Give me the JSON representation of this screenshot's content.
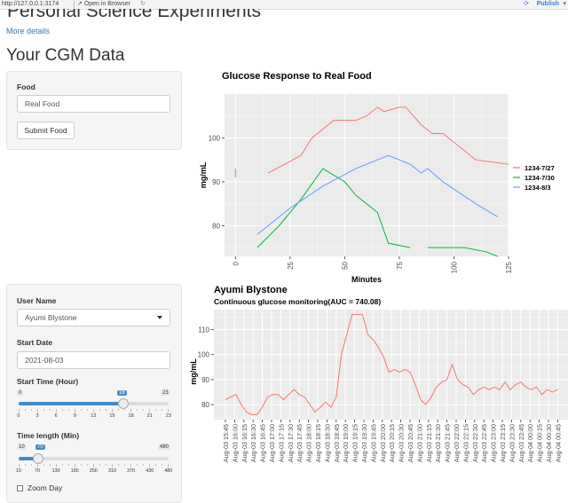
{
  "browser": {
    "url": "http://127.0.0.1:3174",
    "open_in_browser": "Open in Browser",
    "publish": "Publish"
  },
  "page": {
    "app_title": "Personal Science Experiments",
    "more_details": "More details",
    "section_title": "Your CGM Data"
  },
  "food_panel": {
    "food_label": "Food",
    "food_value": "Real Food",
    "submit_label": "Submit Food"
  },
  "user_panel": {
    "user_label": "User Name",
    "user_value": "Ayumi Blystone",
    "start_date_label": "Start Date",
    "start_date_value": "2021-08-03",
    "start_time_label": "Start Time (Hour)",
    "start_time": {
      "min": "0",
      "max": "23",
      "value": "16",
      "value_num": 16,
      "ticks": [
        "0",
        "3",
        "6",
        "9",
        "12",
        "15",
        "18",
        "21",
        "23"
      ]
    },
    "time_length_label": "Time length (Min)",
    "time_length": {
      "min": "10",
      "max": "480",
      "value": "70",
      "value_num": 70,
      "ticks": [
        "10",
        "70",
        "130",
        "190",
        "250",
        "310",
        "370",
        "430",
        "480"
      ]
    },
    "zoom_label": "Zoom Day"
  },
  "colors": {
    "accent": "#428bca",
    "series_1": "#f8766d",
    "series_2": "#00ba38",
    "series_3": "#619cff",
    "panel_bg": "#ebebeb"
  },
  "chart_data": [
    {
      "type": "line",
      "title": "Glucose Response to Real Food",
      "xlabel": "Minutes",
      "ylabel": "mg/mL",
      "xlim": [
        -5,
        125
      ],
      "ylim": [
        73,
        110
      ],
      "x_ticks": [
        "0",
        "25",
        "50",
        "75",
        "100",
        "125"
      ],
      "y_ticks": [
        "80",
        "90",
        "100"
      ],
      "legend_position": "right",
      "grid": true,
      "series": [
        {
          "name": "1234-7/27",
          "segments": [
            [
              [
                0,
                93
              ],
              [
                0,
                91
              ]
            ],
            [
              [
                15,
                92
              ],
              [
                30,
                96
              ],
              [
                35,
                100
              ],
              [
                40,
                102
              ],
              [
                45,
                104
              ],
              [
                50,
                104
              ],
              [
                55,
                104
              ],
              [
                60,
                105
              ],
              [
                65,
                107
              ],
              [
                68,
                106
              ],
              [
                75,
                107
              ],
              [
                78,
                107
              ],
              [
                85,
                103
              ],
              [
                90,
                101
              ],
              [
                95,
                101
              ],
              [
                105,
                97
              ],
              [
                110,
                95
              ],
              [
                125,
                94
              ]
            ]
          ]
        },
        {
          "name": "1234-7/30",
          "segments": [
            [
              [
                10,
                75
              ],
              [
                20,
                80
              ],
              [
                30,
                86
              ],
              [
                40,
                93
              ],
              [
                50,
                90
              ],
              [
                55,
                87
              ],
              [
                65,
                83
              ],
              [
                70,
                76
              ],
              [
                80,
                75
              ]
            ],
            [
              [
                88,
                75
              ],
              [
                105,
                75
              ],
              [
                115,
                74
              ],
              [
                120,
                73
              ]
            ]
          ]
        },
        {
          "name": "1234-8/3",
          "segments": [
            [
              [
                10,
                78
              ],
              [
                25,
                84
              ],
              [
                40,
                89
              ],
              [
                55,
                93
              ],
              [
                65,
                95
              ],
              [
                70,
                96
              ],
              [
                80,
                94
              ],
              [
                85,
                92
              ],
              [
                88,
                93
              ],
              [
                95,
                90
              ],
              [
                110,
                85
              ],
              [
                120,
                82
              ]
            ]
          ]
        }
      ]
    },
    {
      "type": "line",
      "title": "Ayumi Blystone",
      "subtitle": "Continuous glucose monitoring(AUC = 740.08)",
      "xlabel": "",
      "ylabel": "mg/mL",
      "ylim": [
        74,
        118
      ],
      "y_ticks": [
        "80",
        "90",
        "100",
        "110"
      ],
      "grid": true,
      "x_tick_labels": [
        "Aug-03 15:45",
        "Aug-03 16:00",
        "Aug-03 16:15",
        "Aug-03 16:30",
        "Aug-03 16:45",
        "Aug-03 17:00",
        "Aug-03 17:15",
        "Aug-03 17:30",
        "Aug-03 17:45",
        "Aug-03 18:00",
        "Aug-03 18:15",
        "Aug-03 18:30",
        "Aug-03 18:45",
        "Aug-03 19:00",
        "Aug-03 19:15",
        "Aug-03 19:30",
        "Aug-03 19:45",
        "Aug-03 20:00",
        "Aug-03 20:15",
        "Aug-03 20:30",
        "Aug-03 20:45",
        "Aug-03 21:00",
        "Aug-03 21:15",
        "Aug-03 21:30",
        "Aug-03 21:45",
        "Aug-03 22:00",
        "Aug-03 22:15",
        "Aug-03 22:30",
        "Aug-03 22:45",
        "Aug-03 23:00",
        "Aug-03 23:15",
        "Aug-03 23:30",
        "Aug-03 23:45",
        "Aug-04 00:00",
        "Aug-04 00:15",
        "Aug-04 00:30",
        "Aug-04 00:45"
      ],
      "values": [
        82,
        83,
        84,
        80,
        77,
        76,
        76,
        79,
        83,
        84,
        84,
        82,
        84,
        86,
        84,
        83,
        80,
        77,
        79,
        81,
        79,
        83,
        100,
        108,
        116,
        116,
        116,
        108,
        106,
        103,
        99,
        93,
        94,
        93,
        94,
        93,
        88,
        82,
        80,
        83,
        87,
        89,
        90,
        96,
        90,
        88,
        87,
        84,
        86,
        87,
        86,
        87,
        86,
        89,
        86,
        88,
        89,
        87,
        86,
        87,
        84,
        86,
        85,
        86
      ],
      "series": [
        {
          "name": "",
          "color": "#f8766d"
        }
      ]
    }
  ]
}
